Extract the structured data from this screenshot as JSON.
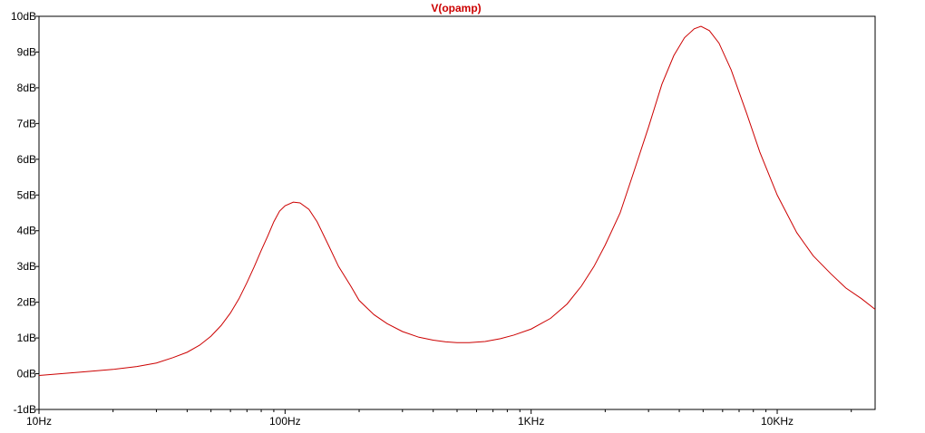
{
  "chart_data": {
    "type": "line",
    "title": "V(opamp)",
    "title_color": "#cc0000",
    "line_color": "#cc0000",
    "frame_color": "#000000",
    "x_scale": "log",
    "xlim": [
      10,
      25000
    ],
    "ylim": [
      -1,
      10
    ],
    "x_ticks": [
      {
        "value": 10,
        "label": "10Hz"
      },
      {
        "value": 100,
        "label": "100Hz"
      },
      {
        "value": 1000,
        "label": "1KHz"
      },
      {
        "value": 10000,
        "label": "10KHz"
      }
    ],
    "y_ticks": [
      {
        "value": -1,
        "label": "-1dB"
      },
      {
        "value": 0,
        "label": "0dB"
      },
      {
        "value": 1,
        "label": "1dB"
      },
      {
        "value": 2,
        "label": "2dB"
      },
      {
        "value": 3,
        "label": "3dB"
      },
      {
        "value": 4,
        "label": "4dB"
      },
      {
        "value": 5,
        "label": "5dB"
      },
      {
        "value": 6,
        "label": "6dB"
      },
      {
        "value": 7,
        "label": "7dB"
      },
      {
        "value": 8,
        "label": "8dB"
      },
      {
        "value": 9,
        "label": "9dB"
      },
      {
        "value": 10,
        "label": "10dB"
      }
    ],
    "grid": false,
    "series": [
      {
        "points": [
          [
            10,
            -0.05
          ],
          [
            15,
            0.05
          ],
          [
            20,
            0.12
          ],
          [
            25,
            0.2
          ],
          [
            30,
            0.3
          ],
          [
            35,
            0.45
          ],
          [
            40,
            0.6
          ],
          [
            45,
            0.8
          ],
          [
            50,
            1.05
          ],
          [
            55,
            1.35
          ],
          [
            60,
            1.7
          ],
          [
            65,
            2.1
          ],
          [
            70,
            2.55
          ],
          [
            75,
            3.0
          ],
          [
            80,
            3.45
          ],
          [
            85,
            3.85
          ],
          [
            90,
            4.25
          ],
          [
            95,
            4.55
          ],
          [
            100,
            4.7
          ],
          [
            108,
            4.8
          ],
          [
            115,
            4.78
          ],
          [
            125,
            4.6
          ],
          [
            135,
            4.25
          ],
          [
            150,
            3.6
          ],
          [
            165,
            3.0
          ],
          [
            185,
            2.45
          ],
          [
            200,
            2.05
          ],
          [
            230,
            1.65
          ],
          [
            260,
            1.4
          ],
          [
            300,
            1.18
          ],
          [
            350,
            1.02
          ],
          [
            400,
            0.94
          ],
          [
            450,
            0.89
          ],
          [
            500,
            0.87
          ],
          [
            560,
            0.87
          ],
          [
            650,
            0.9
          ],
          [
            750,
            0.98
          ],
          [
            850,
            1.08
          ],
          [
            1000,
            1.25
          ],
          [
            1200,
            1.55
          ],
          [
            1400,
            1.95
          ],
          [
            1600,
            2.45
          ],
          [
            1800,
            3.0
          ],
          [
            2000,
            3.6
          ],
          [
            2300,
            4.5
          ],
          [
            2600,
            5.6
          ],
          [
            3000,
            6.9
          ],
          [
            3400,
            8.1
          ],
          [
            3800,
            8.9
          ],
          [
            4200,
            9.4
          ],
          [
            4600,
            9.65
          ],
          [
            4900,
            9.72
          ],
          [
            5300,
            9.6
          ],
          [
            5800,
            9.25
          ],
          [
            6500,
            8.5
          ],
          [
            7500,
            7.3
          ],
          [
            8500,
            6.2
          ],
          [
            10000,
            5.0
          ],
          [
            12000,
            3.95
          ],
          [
            14000,
            3.3
          ],
          [
            16500,
            2.8
          ],
          [
            19000,
            2.4
          ],
          [
            22000,
            2.1
          ],
          [
            25000,
            1.8
          ]
        ]
      }
    ]
  }
}
